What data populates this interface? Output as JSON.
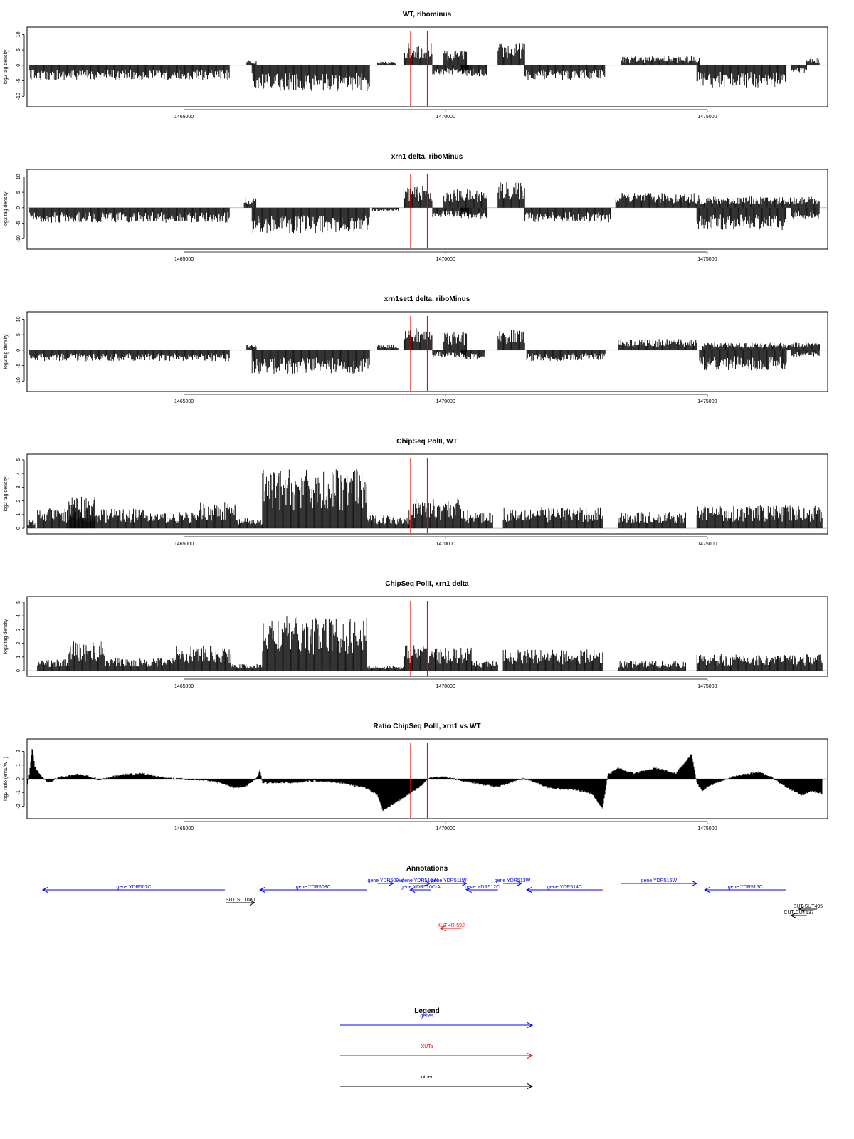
{
  "figure": {
    "x_range": [
      1462000,
      1477300
    ],
    "x_ticks": [
      1465000,
      1470000,
      1475000
    ],
    "markers": [
      1469330,
      1469650
    ],
    "colors": {
      "bars": "#000000",
      "marker": "#ff0000",
      "genes": "#0000ff",
      "xuts": "#ff0000",
      "other": "#000000",
      "baseline": "#999999"
    }
  },
  "chart_data": [
    {
      "type": "bar",
      "title": "WT, ribominus",
      "ylabel": "log2 tag density",
      "ylim": [
        -12,
        11
      ],
      "y_ticks": [
        -10,
        -5,
        0,
        5,
        10
      ],
      "segments": [
        {
          "x": [
            1462050,
            1465870
          ],
          "y": -4
        },
        {
          "x": [
            1466200,
            1466380
          ],
          "y": 1.5
        },
        {
          "x": [
            1466300,
            1468550
          ],
          "y": -7
        },
        {
          "x": [
            1468700,
            1469050
          ],
          "y": 1
        },
        {
          "x": [
            1469200,
            1469750
          ],
          "y": 6
        },
        {
          "x": [
            1469750,
            1470450
          ],
          "y": -2.5
        },
        {
          "x": [
            1469950,
            1470400
          ],
          "y": 4
        },
        {
          "x": [
            1470300,
            1470780
          ],
          "y": -3
        },
        {
          "x": [
            1471000,
            1471520
          ],
          "y": 6
        },
        {
          "x": [
            1471500,
            1473050
          ],
          "y": -4
        },
        {
          "x": [
            1473350,
            1474850
          ],
          "y": 2.5
        },
        {
          "x": [
            1474800,
            1476520
          ],
          "y": -6
        },
        {
          "x": [
            1476600,
            1476900
          ],
          "y": -2
        },
        {
          "x": [
            1476900,
            1477150
          ],
          "y": 2
        }
      ]
    },
    {
      "type": "bar",
      "title": "xrn1 delta, riboMinus",
      "ylabel": "log2 tag density",
      "ylim": [
        -12,
        11
      ],
      "y_ticks": [
        -10,
        -5,
        0,
        5,
        10
      ],
      "segments": [
        {
          "x": [
            1462050,
            1465870
          ],
          "y": -4
        },
        {
          "x": [
            1466150,
            1466380
          ],
          "y": 3
        },
        {
          "x": [
            1466300,
            1468550
          ],
          "y": -7
        },
        {
          "x": [
            1468600,
            1469100
          ],
          "y": -1
        },
        {
          "x": [
            1469200,
            1469750
          ],
          "y": 6
        },
        {
          "x": [
            1469750,
            1470450
          ],
          "y": -2.5
        },
        {
          "x": [
            1469950,
            1470800
          ],
          "y": 5
        },
        {
          "x": [
            1470300,
            1470800
          ],
          "y": -3
        },
        {
          "x": [
            1471000,
            1471520
          ],
          "y": 7
        },
        {
          "x": [
            1471500,
            1473150
          ],
          "y": -4
        },
        {
          "x": [
            1473250,
            1474850
          ],
          "y": 4
        },
        {
          "x": [
            1474800,
            1476520
          ],
          "y": -6
        },
        {
          "x": [
            1474850,
            1477150
          ],
          "y": 3
        },
        {
          "x": [
            1476600,
            1477150
          ],
          "y": -3
        }
      ]
    },
    {
      "type": "bar",
      "title": "xrn1set1 delta, riboMinus",
      "ylabel": "log2 tag density",
      "ylim": [
        -12,
        11
      ],
      "y_ticks": [
        -10,
        -5,
        0,
        5,
        10
      ],
      "segments": [
        {
          "x": [
            1462050,
            1465870
          ],
          "y": -3
        },
        {
          "x": [
            1466200,
            1466380
          ],
          "y": 1.5
        },
        {
          "x": [
            1466300,
            1468550
          ],
          "y": -6.5
        },
        {
          "x": [
            1468700,
            1469100
          ],
          "y": 1.5
        },
        {
          "x": [
            1469200,
            1469750
          ],
          "y": 6
        },
        {
          "x": [
            1469750,
            1470400
          ],
          "y": -2
        },
        {
          "x": [
            1469950,
            1470400
          ],
          "y": 5
        },
        {
          "x": [
            1470300,
            1470750
          ],
          "y": -2.5
        },
        {
          "x": [
            1471000,
            1471520
          ],
          "y": 5.5
        },
        {
          "x": [
            1471550,
            1473050
          ],
          "y": -3
        },
        {
          "x": [
            1473300,
            1474800
          ],
          "y": 3
        },
        {
          "x": [
            1474850,
            1476520
          ],
          "y": -5.5
        },
        {
          "x": [
            1474900,
            1477150
          ],
          "y": 2
        },
        {
          "x": [
            1476600,
            1477150
          ],
          "y": -2
        }
      ]
    },
    {
      "type": "bar",
      "title": "ChipSeq PolII, WT",
      "ylabel": "log2 tag density",
      "ylim": [
        -0.1,
        5.1
      ],
      "y_ticks": [
        0,
        1,
        2,
        3,
        4,
        5
      ],
      "segments": [
        {
          "x": [
            1462000,
            1462150
          ],
          "y": 0.5
        },
        {
          "x": [
            1462200,
            1463300
          ],
          "y": 1.2
        },
        {
          "x": [
            1462800,
            1463300
          ],
          "y": 2
        },
        {
          "x": [
            1463300,
            1464300
          ],
          "y": 1.2
        },
        {
          "x": [
            1464300,
            1465300
          ],
          "y": 1
        },
        {
          "x": [
            1465300,
            1466000
          ],
          "y": 1.6
        },
        {
          "x": [
            1466000,
            1466500
          ],
          "y": 0.6
        },
        {
          "x": [
            1466500,
            1468500
          ],
          "y": 3.6
        },
        {
          "x": [
            1468500,
            1469300
          ],
          "y": 0.8
        },
        {
          "x": [
            1469300,
            1469750
          ],
          "y": 1.8
        },
        {
          "x": [
            1469750,
            1470300
          ],
          "y": 1.8
        },
        {
          "x": [
            1470300,
            1470900
          ],
          "y": 1.1
        },
        {
          "x": [
            1471100,
            1473000
          ],
          "y": 1.3
        },
        {
          "x": [
            1473300,
            1474600
          ],
          "y": 1
        },
        {
          "x": [
            1474800,
            1477200
          ],
          "y": 1.4
        }
      ]
    },
    {
      "type": "bar",
      "title": "ChipSeq PolII, xrn1 delta",
      "ylabel": "log2 tag density",
      "ylim": [
        -0.1,
        5.1
      ],
      "y_ticks": [
        0,
        1,
        2,
        3,
        4,
        5
      ],
      "segments": [
        {
          "x": [
            1462000,
            1462200
          ],
          "y": 0
        },
        {
          "x": [
            1462200,
            1462800
          ],
          "y": 0.7
        },
        {
          "x": [
            1462800,
            1463500
          ],
          "y": 1.8
        },
        {
          "x": [
            1463500,
            1464800
          ],
          "y": 0.8
        },
        {
          "x": [
            1464800,
            1465900
          ],
          "y": 1.5
        },
        {
          "x": [
            1465900,
            1466500
          ],
          "y": 0.4
        },
        {
          "x": [
            1466500,
            1468500
          ],
          "y": 3.3
        },
        {
          "x": [
            1468500,
            1469200
          ],
          "y": 0.3
        },
        {
          "x": [
            1469200,
            1469800
          ],
          "y": 1.6
        },
        {
          "x": [
            1469800,
            1470500
          ],
          "y": 1.4
        },
        {
          "x": [
            1470500,
            1471000
          ],
          "y": 0.6
        },
        {
          "x": [
            1471100,
            1473000
          ],
          "y": 1.3
        },
        {
          "x": [
            1473300,
            1474600
          ],
          "y": 0.6
        },
        {
          "x": [
            1474800,
            1477200
          ],
          "y": 1
        }
      ]
    },
    {
      "type": "area",
      "title": "Ratio ChipSeq PolII, xrn1 vs WT",
      "ylabel": "log2 ratio (xrn1/WT)",
      "ylim": [
        -2.6,
        2.6
      ],
      "y_ticks": [
        -2,
        -1,
        0,
        1,
        2
      ],
      "x": [
        1462000,
        1462050,
        1462100,
        1462150,
        1462250,
        1462400,
        1462600,
        1463000,
        1463400,
        1463800,
        1464200,
        1464600,
        1465000,
        1465500,
        1465800,
        1466000,
        1466200,
        1466400,
        1466450,
        1466500,
        1467000,
        1467500,
        1468000,
        1468500,
        1468700,
        1468800,
        1469200,
        1469500,
        1469700,
        1470000,
        1470500,
        1471000,
        1471500,
        1472000,
        1472500,
        1472800,
        1473000,
        1473100,
        1473300,
        1473600,
        1474000,
        1474400,
        1474700,
        1474800,
        1474900,
        1475000,
        1475500,
        1476000,
        1476200,
        1476500,
        1476800,
        1477000,
        1477200
      ],
      "y": [
        -0.8,
        0.6,
        2.4,
        0.9,
        0.3,
        -0.3,
        0.1,
        0.35,
        -0.05,
        0.3,
        0.4,
        0.1,
        0,
        -0.15,
        -0.45,
        -0.7,
        -0.5,
        0.1,
        0.7,
        -0.3,
        -0.3,
        -0.15,
        -0.3,
        -0.7,
        -1.2,
        -2.3,
        -1.4,
        -0.6,
        0.1,
        0.15,
        -0.3,
        -0.6,
        0.05,
        -0.7,
        -0.8,
        -1.1,
        -2.2,
        0.3,
        0.8,
        0.4,
        0.8,
        0.4,
        1.8,
        -0.3,
        -0.9,
        -0.6,
        0.2,
        0.5,
        0.2,
        -0.6,
        -1.2,
        -0.9,
        -1.1
      ]
    },
    {
      "type": "table",
      "title": "Annotations",
      "features": [
        {
          "label": "gene YDR507C",
          "x": [
            1462300,
            1465780
          ],
          "strand": "-",
          "category": "gene",
          "row": 2
        },
        {
          "label": "gene YDR508C",
          "x": [
            1466450,
            1468490
          ],
          "strand": "-",
          "category": "gene",
          "row": 2
        },
        {
          "label": "gene YDR509W",
          "x": [
            1468700,
            1469000
          ],
          "strand": "+",
          "category": "gene",
          "row": 1
        },
        {
          "label": "gene YDR510W",
          "x": [
            1469300,
            1469700
          ],
          "strand": "+",
          "category": "gene",
          "row": 1
        },
        {
          "label": "gene YDR510C-A",
          "x": [
            1469320,
            1469720
          ],
          "strand": "-",
          "category": "gene",
          "row": 2
        },
        {
          "label": "gene YDR511W",
          "x": [
            1469720,
            1470400
          ],
          "strand": "+",
          "category": "gene",
          "row": 1
        },
        {
          "label": "gene YDR512C",
          "x": [
            1470400,
            1471000
          ],
          "strand": "-",
          "category": "gene",
          "row": 2
        },
        {
          "label": "gene YDR513W",
          "x": [
            1471100,
            1471450
          ],
          "strand": "+",
          "category": "gene",
          "row": 1
        },
        {
          "label": "gene YDR514C",
          "x": [
            1471550,
            1473000
          ],
          "strand": "-",
          "category": "gene",
          "row": 2
        },
        {
          "label": "gene YDR515W",
          "x": [
            1473350,
            1474800
          ],
          "strand": "+",
          "category": "gene",
          "row": 1
        },
        {
          "label": "gene YDR516C",
          "x": [
            1474950,
            1476500
          ],
          "strand": "-",
          "category": "gene",
          "row": 2
        },
        {
          "label": "SUT SUT080",
          "x": [
            1465800,
            1466350
          ],
          "strand": "+",
          "category": "other",
          "row": 4
        },
        {
          "label": "SUT SUT495",
          "x": [
            1476750,
            1477100
          ],
          "strand": "-",
          "category": "other",
          "row": 5
        },
        {
          "label": "CUT CUT537",
          "x": [
            1476600,
            1476900
          ],
          "strand": "-",
          "category": "other",
          "row": 6
        },
        {
          "label": "XUT 4R-592",
          "x": [
            1469900,
            1470300
          ],
          "strand": "-",
          "category": "xut",
          "row": 8
        }
      ]
    },
    {
      "type": "table",
      "title": "Legend",
      "entries": [
        {
          "label": "genes",
          "category": "gene"
        },
        {
          "label": "XUTs",
          "category": "xut"
        },
        {
          "label": "other",
          "category": "other"
        }
      ]
    }
  ]
}
